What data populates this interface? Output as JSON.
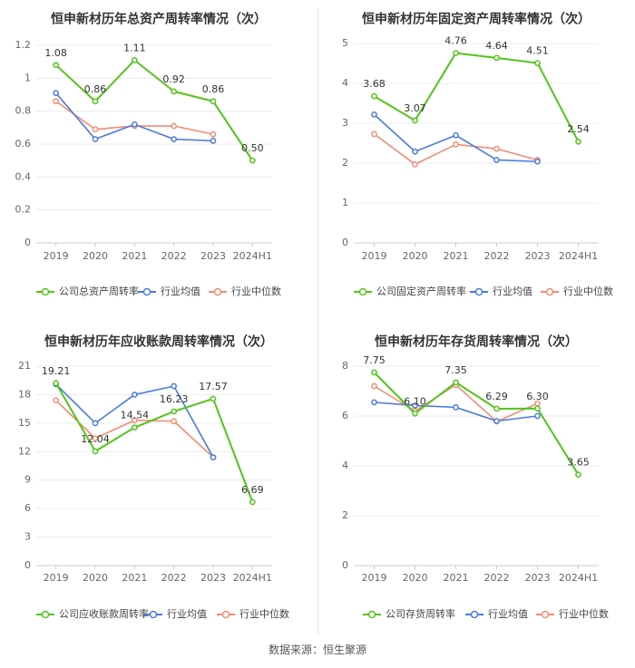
{
  "source_text": "数据来源：恒生聚源",
  "colors": {
    "company": "#52c41a",
    "industry_avg": "#4a7bdc",
    "industry_median": "#f08c72"
  },
  "chart_data": [
    {
      "type": "line",
      "title": "恒申新材历年总资产周转率情况（次）",
      "categories": [
        "2019",
        "2020",
        "2021",
        "2022",
        "2023",
        "2024H1"
      ],
      "ylim": [
        0,
        1.2
      ],
      "yticks": [
        "0",
        "0.2",
        "0.4",
        "0.6",
        "0.8",
        "1",
        "1.2"
      ],
      "grid": true,
      "legend_position": "bottom",
      "series": [
        {
          "name": "公司总资产周转率",
          "values": [
            1.08,
            0.86,
            1.11,
            0.92,
            0.86,
            0.5
          ],
          "labels": [
            "1.08",
            "0.86",
            "1.11",
            "0.92",
            "0.86",
            "0.50"
          ]
        },
        {
          "name": "行业均值",
          "values": [
            0.91,
            0.63,
            0.72,
            0.63,
            0.62,
            null
          ]
        },
        {
          "name": "行业中位数",
          "values": [
            0.86,
            0.69,
            0.71,
            0.71,
            0.66,
            null
          ]
        }
      ]
    },
    {
      "type": "line",
      "title": "恒申新材历年固定资产周转率情况（次）",
      "categories": [
        "2019",
        "2020",
        "2021",
        "2022",
        "2023",
        "2024H1"
      ],
      "ylim": [
        0,
        5
      ],
      "yticks": [
        "0",
        "1",
        "2",
        "3",
        "4",
        "5"
      ],
      "grid": true,
      "legend_position": "bottom",
      "series": [
        {
          "name": "公司固定资产周转率",
          "values": [
            3.68,
            3.07,
            4.76,
            4.64,
            4.51,
            2.54
          ],
          "labels": [
            "3.68",
            "3.07",
            "4.76",
            "4.64",
            "4.51",
            "2.54"
          ]
        },
        {
          "name": "行业均值",
          "values": [
            3.22,
            2.29,
            2.7,
            2.08,
            2.04,
            null
          ]
        },
        {
          "name": "行业中位数",
          "values": [
            2.73,
            1.97,
            2.47,
            2.36,
            2.08,
            null
          ]
        }
      ]
    },
    {
      "type": "line",
      "title": "恒申新材历年应收账款周转率情况（次）",
      "categories": [
        "2019",
        "2020",
        "2021",
        "2022",
        "2023",
        "2024H1"
      ],
      "ylim": [
        0,
        21
      ],
      "yticks": [
        "0",
        "3",
        "6",
        "9",
        "12",
        "15",
        "18",
        "21"
      ],
      "grid": true,
      "legend_position": "bottom",
      "series": [
        {
          "name": "公司应收账款周转率",
          "values": [
            19.21,
            12.04,
            14.54,
            16.23,
            17.57,
            6.69
          ],
          "labels": [
            "19.21",
            "12.04",
            "14.54",
            "16.23",
            "17.57",
            "6.69"
          ]
        },
        {
          "name": "行业均值",
          "values": [
            19.1,
            15.0,
            18.0,
            18.9,
            11.4,
            null
          ]
        },
        {
          "name": "行业中位数",
          "values": [
            17.4,
            13.4,
            15.3,
            15.2,
            11.4,
            null
          ]
        }
      ]
    },
    {
      "type": "line",
      "title": "恒申新材历年存货周转率情况（次）",
      "categories": [
        "2019",
        "2020",
        "2021",
        "2022",
        "2023",
        "2024H1"
      ],
      "ylim": [
        0,
        8
      ],
      "yticks": [
        "0",
        "2",
        "4",
        "6",
        "8"
      ],
      "grid": true,
      "legend_position": "bottom",
      "series": [
        {
          "name": "公司存货周转率",
          "values": [
            7.75,
            6.1,
            7.35,
            6.29,
            6.3,
            3.65
          ],
          "labels": [
            "7.75",
            "6.10",
            "7.35",
            "6.29",
            "6.30",
            "3.65"
          ]
        },
        {
          "name": "行业均值",
          "values": [
            6.55,
            6.42,
            6.35,
            5.8,
            6.0,
            null
          ]
        },
        {
          "name": "行业中位数",
          "values": [
            7.2,
            6.2,
            7.25,
            5.78,
            6.5,
            null
          ]
        }
      ]
    }
  ]
}
